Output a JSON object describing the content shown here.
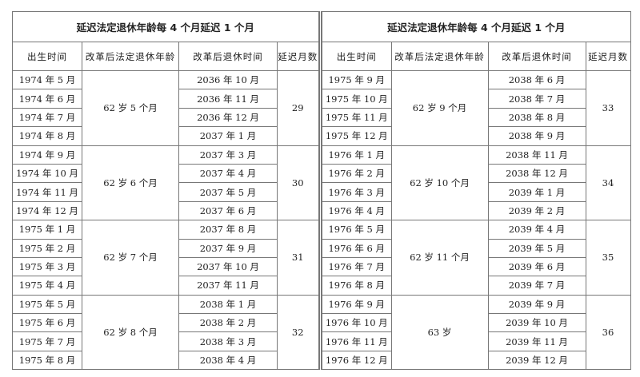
{
  "title": "延迟法定退休年龄每 4 个月延迟 1 个月",
  "headers": [
    "出生时间",
    "改革后法定退休年龄",
    "改革后退休时间",
    "延迟月数"
  ],
  "left": {
    "groups": [
      {
        "age": "62 岁 5 个月",
        "months": "29",
        "rows": [
          [
            "1974 年 5 月",
            "2036 年 10 月"
          ],
          [
            "1974 年 6 月",
            "2036 年 11 月"
          ],
          [
            "1974 年 7 月",
            "2036 年 12 月"
          ],
          [
            "1974 年 8 月",
            "2037 年 1 月"
          ]
        ]
      },
      {
        "age": "62 岁 6 个月",
        "months": "30",
        "rows": [
          [
            "1974 年 9 月",
            "2037 年 3 月"
          ],
          [
            "1974 年 10 月",
            "2037 年 4 月"
          ],
          [
            "1974 年 11 月",
            "2037 年 5 月"
          ],
          [
            "1974 年 12 月",
            "2037 年 6 月"
          ]
        ]
      },
      {
        "age": "62 岁 7 个月",
        "months": "31",
        "rows": [
          [
            "1975 年 1 月",
            "2037 年 8 月"
          ],
          [
            "1975 年 2 月",
            "2037 年 9 月"
          ],
          [
            "1975 年 3 月",
            "2037 年 10 月"
          ],
          [
            "1975 年 4 月",
            "2037 年 11 月"
          ]
        ]
      },
      {
        "age": "62 岁 8 个月",
        "months": "32",
        "rows": [
          [
            "1975 年 5 月",
            "2038 年 1 月"
          ],
          [
            "1975 年 6 月",
            "2038 年 2 月"
          ],
          [
            "1975 年 7 月",
            "2038 年 3 月"
          ],
          [
            "1975 年 8 月",
            "2038 年 4 月"
          ]
        ]
      }
    ]
  },
  "right": {
    "groups": [
      {
        "age": "62 岁 9 个月",
        "months": "33",
        "rows": [
          [
            "1975 年 9 月",
            "2038 年 6 月"
          ],
          [
            "1975 年 10 月",
            "2038 年 7 月"
          ],
          [
            "1975 年 11 月",
            "2038 年 8 月"
          ],
          [
            "1975 年 12 月",
            "2038 年 9 月"
          ]
        ]
      },
      {
        "age": "62 岁 10 个月",
        "months": "34",
        "rows": [
          [
            "1976 年 1 月",
            "2038 年 11 月"
          ],
          [
            "1976 年 2 月",
            "2038 年 12 月"
          ],
          [
            "1976 年 3 月",
            "2039 年 1 月"
          ],
          [
            "1976 年 4 月",
            "2039 年 2 月"
          ]
        ]
      },
      {
        "age": "62 岁 11 个月",
        "months": "35",
        "rows": [
          [
            "1976 年 5 月",
            "2039 年 4 月"
          ],
          [
            "1976 年 6 月",
            "2039 年 5 月"
          ],
          [
            "1976 年 7 月",
            "2039 年 6 月"
          ],
          [
            "1976 年 8 月",
            "2039 年 7 月"
          ]
        ]
      },
      {
        "age": "63 岁",
        "months": "36",
        "rows": [
          [
            "1976 年 9 月",
            "2039 年 9 月"
          ],
          [
            "1976 年 10 月",
            "2039 年 10 月"
          ],
          [
            "1976 年 11 月",
            "2039 年 11 月"
          ],
          [
            "1976 年 12 月",
            "2039 年 12 月"
          ]
        ]
      }
    ]
  }
}
